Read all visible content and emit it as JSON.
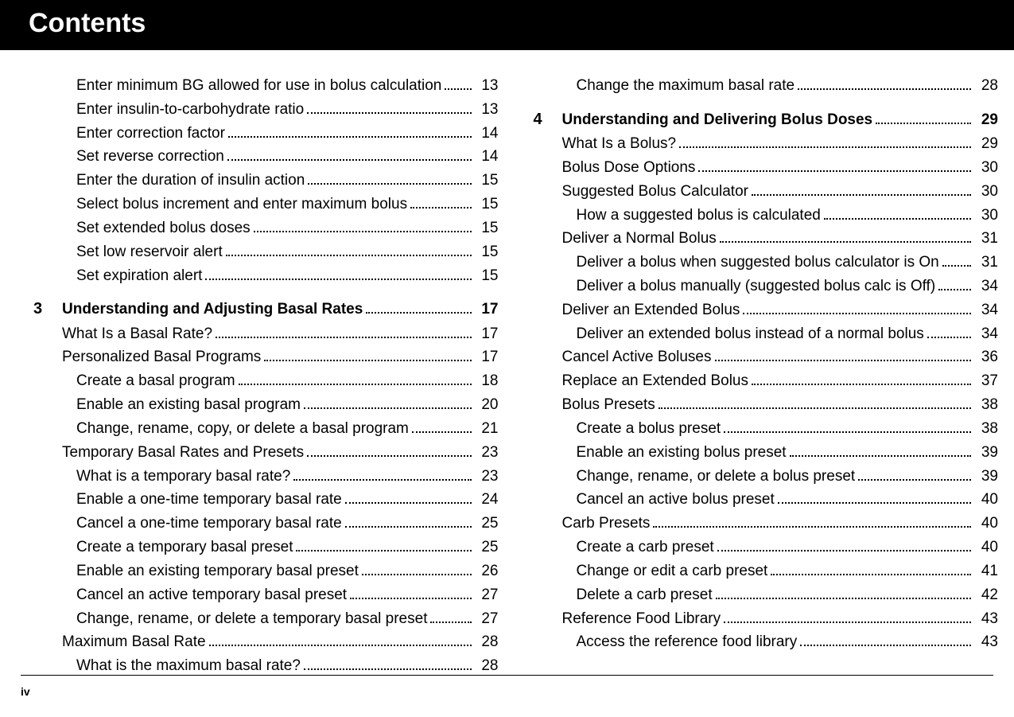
{
  "header": {
    "title": "Contents"
  },
  "footer": {
    "page_label": "iv"
  },
  "left": {
    "pre": [
      {
        "label": "Enter minimum BG allowed for use in bolus calculation",
        "page": "13",
        "level": 2
      },
      {
        "label": "Enter insulin-to-carbohydrate ratio",
        "page": "13",
        "level": 2
      },
      {
        "label": "Enter correction factor",
        "page": "14",
        "level": 2
      },
      {
        "label": "Set reverse correction",
        "page": "14",
        "level": 2
      },
      {
        "label": "Enter the duration of insulin action",
        "page": "15",
        "level": 2
      },
      {
        "label": "Select bolus increment and enter maximum bolus",
        "page": "15",
        "level": 2
      },
      {
        "label": "Set extended bolus doses",
        "page": "15",
        "level": 2
      },
      {
        "label": "Set low reservoir alert",
        "page": "15",
        "level": 2
      },
      {
        "label": "Set expiration alert",
        "page": "15",
        "level": 2
      }
    ],
    "chapter": {
      "num": "3",
      "title": "Understanding and Adjusting Basal Rates",
      "page": "17"
    },
    "items": [
      {
        "label": "What Is a Basal Rate?",
        "page": "17",
        "level": 1
      },
      {
        "label": "Personalized Basal Programs",
        "page": "17",
        "level": 1
      },
      {
        "label": "Create a basal program",
        "page": "18",
        "level": 2
      },
      {
        "label": "Enable an existing basal program",
        "page": "20",
        "level": 2
      },
      {
        "label": "Change, rename, copy, or delete a basal program",
        "page": "21",
        "level": 2
      },
      {
        "label": "Temporary Basal Rates and Presets",
        "page": "23",
        "level": 1
      },
      {
        "label": "What is a temporary basal rate?",
        "page": "23",
        "level": 2
      },
      {
        "label": "Enable a one-time temporary basal rate",
        "page": "24",
        "level": 2
      },
      {
        "label": "Cancel a one-time temporary basal rate",
        "page": "25",
        "level": 2
      },
      {
        "label": "Create a temporary basal preset",
        "page": "25",
        "level": 2
      },
      {
        "label": "Enable an existing temporary basal preset",
        "page": "26",
        "level": 2
      },
      {
        "label": "Cancel an active temporary basal preset",
        "page": "27",
        "level": 2
      },
      {
        "label": "Change, rename, or delete a temporary basal preset",
        "page": "27",
        "level": 2
      },
      {
        "label": "Maximum Basal Rate",
        "page": "28",
        "level": 1
      },
      {
        "label": "What is the maximum basal rate?",
        "page": "28",
        "level": 2
      }
    ]
  },
  "right": {
    "pre": [
      {
        "label": "Change the maximum basal rate",
        "page": "28",
        "level": 2
      }
    ],
    "chapter": {
      "num": "4",
      "title": "Understanding and Delivering Bolus Doses",
      "page": "29"
    },
    "items": [
      {
        "label": "What Is a Bolus?",
        "page": "29",
        "level": 1
      },
      {
        "label": "Bolus Dose Options",
        "page": "30",
        "level": 1
      },
      {
        "label": "Suggested Bolus Calculator",
        "page": "30",
        "level": 1
      },
      {
        "label": "How a suggested bolus is calculated",
        "page": "30",
        "level": 2
      },
      {
        "label": "Deliver a Normal Bolus",
        "page": "31",
        "level": 1
      },
      {
        "label": "Deliver a bolus when suggested bolus calculator is On",
        "page": "31",
        "level": 2
      },
      {
        "label": "Deliver a bolus manually (suggested bolus calc is Off)",
        "page": "34",
        "level": 2
      },
      {
        "label": "Deliver an Extended Bolus",
        "page": "34",
        "level": 1
      },
      {
        "label": "Deliver an extended bolus instead of a normal bolus",
        "page": "34",
        "level": 2
      },
      {
        "label": "Cancel Active Boluses",
        "page": "36",
        "level": 1
      },
      {
        "label": "Replace an Extended Bolus",
        "page": "37",
        "level": 1
      },
      {
        "label": "Bolus Presets",
        "page": "38",
        "level": 1
      },
      {
        "label": "Create a bolus preset",
        "page": "38",
        "level": 2
      },
      {
        "label": "Enable an existing bolus preset",
        "page": "39",
        "level": 2
      },
      {
        "label": "Change, rename, or delete a bolus preset",
        "page": "39",
        "level": 2
      },
      {
        "label": "Cancel an active bolus preset",
        "page": "40",
        "level": 2
      },
      {
        "label": "Carb Presets",
        "page": "40",
        "level": 1
      },
      {
        "label": "Create a carb preset",
        "page": "40",
        "level": 2
      },
      {
        "label": "Change or edit a carb preset",
        "page": "41",
        "level": 2
      },
      {
        "label": "Delete a carb preset",
        "page": "42",
        "level": 2
      },
      {
        "label": "Reference Food Library",
        "page": "43",
        "level": 1
      },
      {
        "label": "Access the reference food library",
        "page": "43",
        "level": 2
      }
    ]
  }
}
